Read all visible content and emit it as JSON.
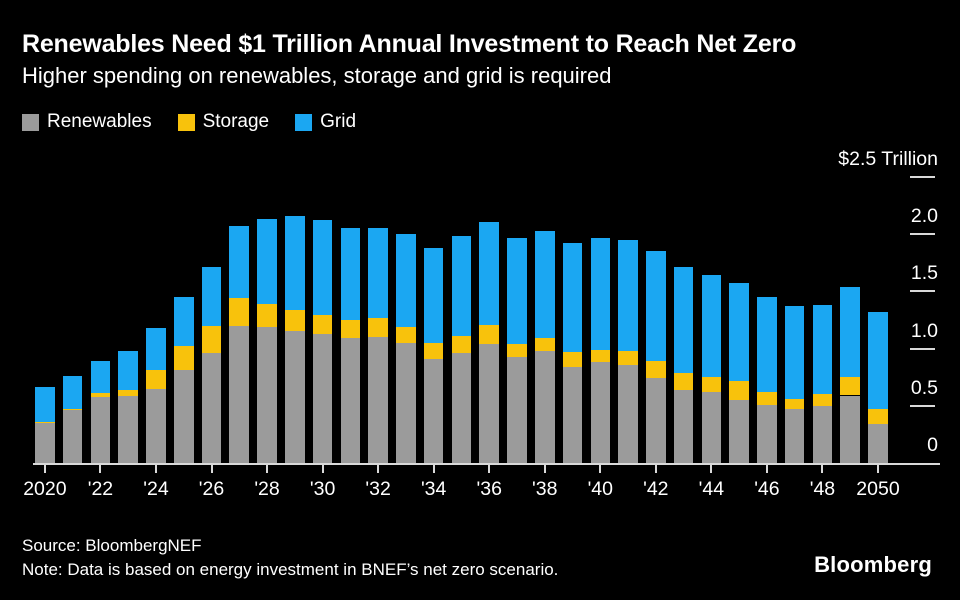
{
  "header": {
    "title": "Renewables Need $1 Trillion Annual Investment to Reach Net Zero",
    "subtitle": "Higher spending on renewables, storage and grid is required"
  },
  "colors": {
    "background": "#000000",
    "text": "#ffffff",
    "axis": "#d9d9d9",
    "renewables": "#9b9b9b",
    "storage": "#f8c20c",
    "grid": "#1ba7f2"
  },
  "chart_data": {
    "type": "bar",
    "stacked": true,
    "title": "Renewables Need $1 Trillion Annual Investment to Reach Net Zero",
    "unit": "$ trillion per year",
    "grid": false,
    "legend_position": "top-left",
    "ylim": [
      0,
      2.5
    ],
    "categories": [
      2020,
      2021,
      2022,
      2023,
      2024,
      2025,
      2026,
      2027,
      2028,
      2029,
      2030,
      2031,
      2032,
      2033,
      2034,
      2035,
      2036,
      2037,
      2038,
      2039,
      2040,
      2041,
      2042,
      2043,
      2044,
      2045,
      2046,
      2047,
      2048,
      2049,
      2050
    ],
    "series": [
      {
        "name": "Renewables",
        "color": "#9b9b9b",
        "values": [
          0.35,
          0.46,
          0.58,
          0.59,
          0.65,
          0.81,
          0.96,
          1.2,
          1.19,
          1.15,
          1.13,
          1.09,
          1.1,
          1.05,
          0.91,
          0.96,
          1.04,
          0.93,
          0.98,
          0.84,
          0.88,
          0.86,
          0.74,
          0.64,
          0.62,
          0.55,
          0.51,
          0.47,
          0.5,
          0.59,
          0.34
        ]
      },
      {
        "name": "Storage",
        "color": "#f8c20c",
        "values": [
          0.01,
          0.01,
          0.03,
          0.05,
          0.16,
          0.21,
          0.24,
          0.24,
          0.2,
          0.19,
          0.16,
          0.16,
          0.17,
          0.14,
          0.14,
          0.15,
          0.17,
          0.11,
          0.11,
          0.13,
          0.11,
          0.12,
          0.15,
          0.15,
          0.13,
          0.17,
          0.11,
          0.09,
          0.1,
          0.16,
          0.13
        ]
      },
      {
        "name": "Grid",
        "color": "#1ba7f2",
        "values": [
          0.3,
          0.29,
          0.28,
          0.34,
          0.37,
          0.43,
          0.51,
          0.63,
          0.74,
          0.82,
          0.83,
          0.8,
          0.78,
          0.81,
          0.83,
          0.87,
          0.9,
          0.93,
          0.94,
          0.95,
          0.98,
          0.97,
          0.96,
          0.92,
          0.89,
          0.85,
          0.83,
          0.81,
          0.78,
          0.79,
          0.85
        ]
      }
    ],
    "y_ticks": [
      {
        "value": 2.5,
        "label": "$2.5 Trillion"
      },
      {
        "value": 2.0,
        "label": "2.0"
      },
      {
        "value": 1.5,
        "label": "1.5"
      },
      {
        "value": 1.0,
        "label": "1.0"
      },
      {
        "value": 0.5,
        "label": "0.5"
      },
      {
        "value": 0,
        "label": "0"
      }
    ],
    "x_tick_labels": [
      "2020",
      "'22",
      "'24",
      "'26",
      "'28",
      "'30",
      "'32",
      "'34",
      "'36",
      "'38",
      "'40",
      "'42",
      "'44",
      "'46",
      "'48",
      "2050"
    ]
  },
  "footer": {
    "source": "Source: BloombergNEF",
    "note": "Note: Data is based on energy investment in BNEF’s net zero scenario.",
    "brand": "Bloomberg"
  }
}
